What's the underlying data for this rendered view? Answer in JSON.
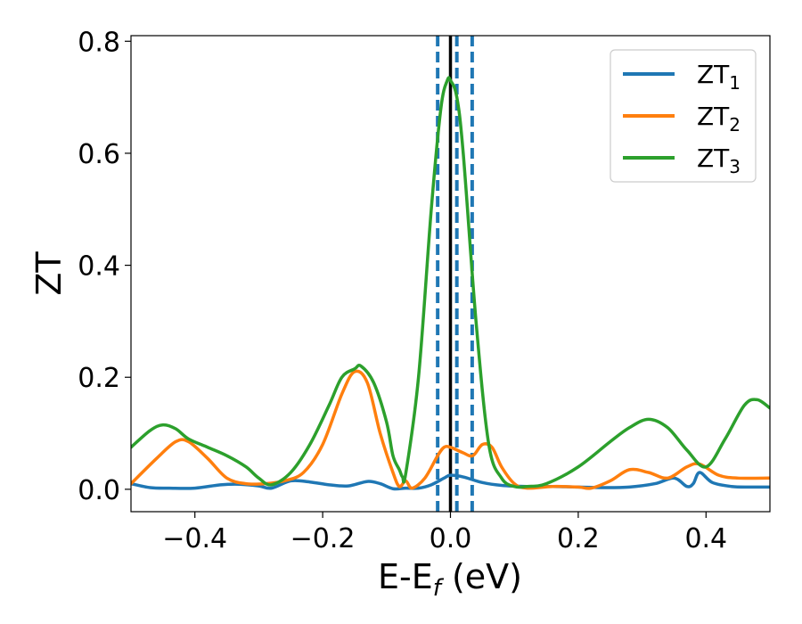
{
  "chart_data": {
    "type": "line",
    "xlabel": "E-E_f (eV)",
    "xlabel_parts": {
      "main": "E-E",
      "sub": "f",
      "unit": " (eV)"
    },
    "ylabel": "ZT",
    "xlim": [
      -0.5,
      0.5
    ],
    "ylim": [
      -0.04,
      0.81
    ],
    "xticks": [
      -0.4,
      -0.2,
      0.0,
      0.2,
      0.4
    ],
    "xtick_labels": [
      "−0.4",
      "−0.2",
      "0.0",
      "0.2",
      "0.4"
    ],
    "yticks": [
      0.0,
      0.2,
      0.4,
      0.6,
      0.8
    ],
    "ytick_labels": [
      "0.0",
      "0.2",
      "0.4",
      "0.6",
      "0.8"
    ],
    "grid": false,
    "legend_position": "top-right",
    "vertical_lines": [
      {
        "x": 0.0,
        "style": "solid",
        "color": "#000000"
      },
      {
        "x": -0.02,
        "style": "dashed",
        "color": "#1f77b4"
      },
      {
        "x": 0.01,
        "style": "dashed",
        "color": "#1f77b4"
      },
      {
        "x": 0.034,
        "style": "dashed",
        "color": "#1f77b4"
      }
    ],
    "series": [
      {
        "name": "ZT_1",
        "legend_main": "ZT",
        "legend_sub": "1",
        "color": "#1f77b4",
        "x": [
          -0.5,
          -0.47,
          -0.44,
          -0.4,
          -0.36,
          -0.33,
          -0.3,
          -0.28,
          -0.25,
          -0.22,
          -0.19,
          -0.16,
          -0.13,
          -0.11,
          -0.09,
          -0.07,
          -0.05,
          -0.03,
          -0.01,
          0.0,
          0.02,
          0.05,
          0.08,
          0.12,
          0.16,
          0.2,
          0.24,
          0.28,
          0.32,
          0.35,
          0.37,
          0.38,
          0.39,
          0.41,
          0.44,
          0.47,
          0.5
        ],
        "y": [
          0.01,
          0.003,
          0.002,
          0.002,
          0.008,
          0.009,
          0.006,
          0.002,
          0.015,
          0.013,
          0.008,
          0.006,
          0.014,
          0.01,
          0.001,
          0.002,
          0.002,
          0.008,
          0.02,
          0.025,
          0.022,
          0.012,
          0.007,
          0.005,
          0.005,
          0.004,
          0.003,
          0.004,
          0.01,
          0.02,
          0.005,
          0.01,
          0.03,
          0.012,
          0.005,
          0.004,
          0.004
        ]
      },
      {
        "name": "ZT_2",
        "legend_main": "ZT",
        "legend_sub": "2",
        "color": "#ff7f0e",
        "x": [
          -0.5,
          -0.46,
          -0.43,
          -0.41,
          -0.38,
          -0.35,
          -0.32,
          -0.29,
          -0.26,
          -0.23,
          -0.2,
          -0.17,
          -0.15,
          -0.13,
          -0.11,
          -0.09,
          -0.08,
          -0.07,
          -0.06,
          -0.04,
          -0.02,
          -0.01,
          0.0,
          0.02,
          0.035,
          0.05,
          0.065,
          0.08,
          0.1,
          0.12,
          0.16,
          0.2,
          0.22,
          0.25,
          0.28,
          0.31,
          0.34,
          0.37,
          0.39,
          0.42,
          0.45,
          0.5
        ],
        "y": [
          0.01,
          0.055,
          0.085,
          0.085,
          0.055,
          0.02,
          0.01,
          0.01,
          0.015,
          0.03,
          0.08,
          0.17,
          0.21,
          0.19,
          0.1,
          0.03,
          0.005,
          0.015,
          0.002,
          0.02,
          0.06,
          0.075,
          0.075,
          0.065,
          0.06,
          0.08,
          0.075,
          0.04,
          0.01,
          0.002,
          0.005,
          0.004,
          0.002,
          0.015,
          0.035,
          0.03,
          0.02,
          0.04,
          0.045,
          0.025,
          0.02,
          0.02
        ]
      },
      {
        "name": "ZT_3",
        "legend_main": "ZT",
        "legend_sub": "3",
        "color": "#2ca02c",
        "x": [
          -0.5,
          -0.47,
          -0.45,
          -0.43,
          -0.41,
          -0.38,
          -0.35,
          -0.32,
          -0.3,
          -0.28,
          -0.25,
          -0.22,
          -0.19,
          -0.17,
          -0.15,
          -0.14,
          -0.12,
          -0.1,
          -0.09,
          -0.08,
          -0.075,
          -0.07,
          -0.05,
          -0.03,
          -0.015,
          -0.005,
          0.0,
          0.01,
          0.02,
          0.04,
          0.06,
          0.08,
          0.1,
          0.12,
          0.15,
          0.2,
          0.25,
          0.28,
          0.31,
          0.34,
          0.37,
          0.4,
          0.43,
          0.46,
          0.48,
          0.5
        ],
        "y": [
          0.075,
          0.105,
          0.115,
          0.108,
          0.09,
          0.075,
          0.06,
          0.04,
          0.02,
          0.008,
          0.03,
          0.08,
          0.15,
          0.2,
          0.215,
          0.22,
          0.19,
          0.12,
          0.06,
          0.035,
          0.022,
          0.028,
          0.2,
          0.5,
          0.68,
          0.73,
          0.73,
          0.7,
          0.6,
          0.3,
          0.08,
          0.02,
          0.005,
          0.005,
          0.01,
          0.04,
          0.085,
          0.11,
          0.125,
          0.11,
          0.07,
          0.04,
          0.09,
          0.15,
          0.16,
          0.145
        ]
      }
    ]
  }
}
